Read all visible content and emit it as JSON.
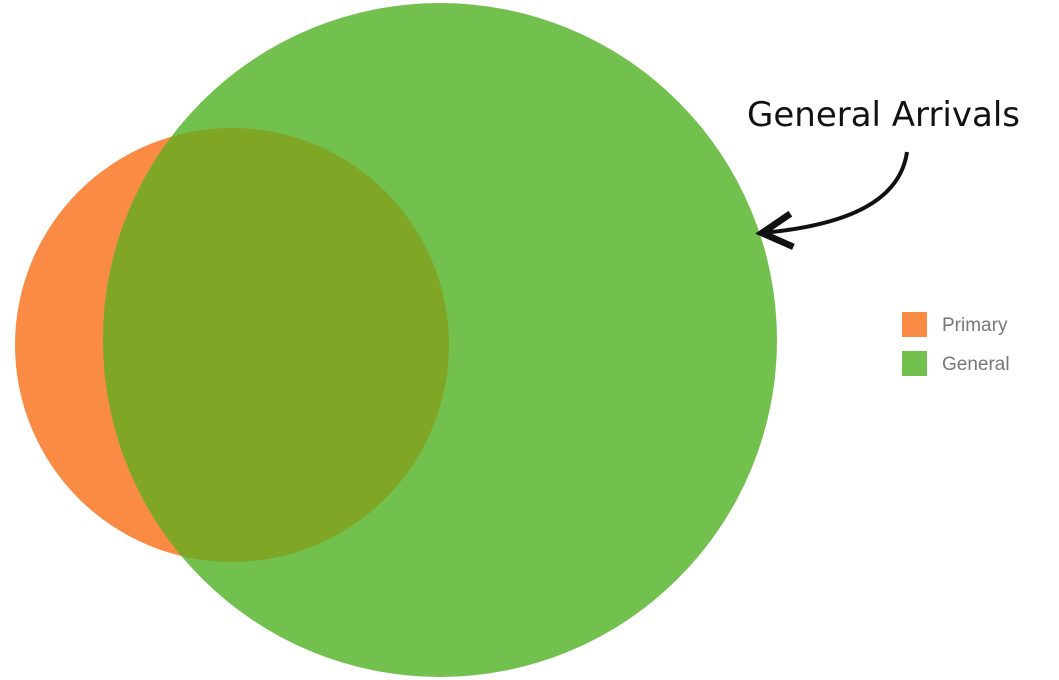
{
  "annotation": {
    "text": "General Arrivals"
  },
  "sets": [
    {
      "id": "primary",
      "name": "Primary",
      "color": "#f98b45"
    },
    {
      "id": "general",
      "name": "General",
      "color": "#72c14f"
    }
  ],
  "overlap_color": "#7fa624",
  "legend": {
    "items": [
      {
        "label": "Primary",
        "color": "#f98b45"
      },
      {
        "label": "General",
        "color": "#72c14f"
      }
    ]
  }
}
